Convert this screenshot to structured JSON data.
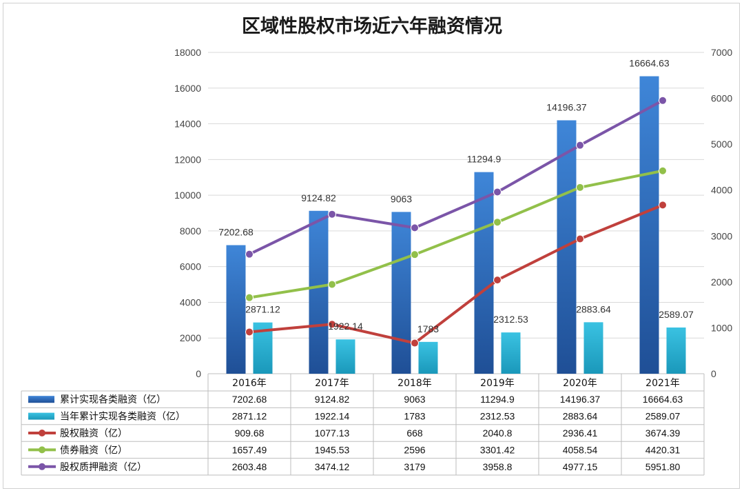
{
  "chart_data": {
    "type": "bar",
    "title": "区域性股权市场近六年融资情况",
    "categories": [
      "2016年",
      "2017年",
      "2018年",
      "2019年",
      "2020年",
      "2021年"
    ],
    "y_left": {
      "min": 0,
      "max": 18000,
      "ticks": [
        "0",
        "2000",
        "4000",
        "6000",
        "8000",
        "10000",
        "12000",
        "14000",
        "16000",
        "18000"
      ]
    },
    "y_right": {
      "min": 0,
      "max": 7000,
      "ticks": [
        "0",
        "1000",
        "2000",
        "3000",
        "4000",
        "5000",
        "6000",
        "7000"
      ]
    },
    "series": [
      {
        "name": "累计实现各类融资（亿）",
        "kind": "bar",
        "axis": "left",
        "color": "#3a78c8",
        "values": [
          7202.68,
          9124.82,
          9063,
          11294.9,
          14196.37,
          16664.63
        ],
        "labels": [
          "7202.68",
          "9124.82",
          "9063",
          "11294.9",
          "14196.37",
          "16664.63"
        ]
      },
      {
        "name": "当年累计实现各类融资（亿）",
        "kind": "bar",
        "axis": "left",
        "color": "#2fb3d4",
        "values": [
          2871.12,
          1922.14,
          1783,
          2312.53,
          2883.64,
          2589.07
        ],
        "labels": [
          "2871.12",
          "1922.14",
          "1783",
          "2312.53",
          "2883.64",
          "2589.07"
        ]
      },
      {
        "name": "股权融资（亿）",
        "kind": "line",
        "axis": "right",
        "color": "#c0403c",
        "values": [
          909.68,
          1077.13,
          668,
          2040.8,
          2936.41,
          3674.39
        ],
        "labels": [
          "909.68",
          "1077.13",
          "668",
          "2040.8",
          "2936.41",
          "3674.39"
        ]
      },
      {
        "name": "债券融资（亿）",
        "kind": "line",
        "axis": "right",
        "color": "#92c04a",
        "values": [
          1657.49,
          1945.53,
          2596,
          3301.42,
          4058.54,
          4420.31
        ],
        "labels": [
          "1657.49",
          "1945.53",
          "2596",
          "3301.42",
          "4058.54",
          "4420.31"
        ]
      },
      {
        "name": "股权质押融资（亿）",
        "kind": "line",
        "axis": "right",
        "color": "#7b55a8",
        "values": [
          2603.48,
          3474.12,
          3179,
          3958.8,
          4977.15,
          5951.8
        ],
        "labels": [
          "2603.48",
          "3474.12",
          "3179",
          "3958.8",
          "4977.15",
          "5951.80"
        ]
      }
    ],
    "grid": true,
    "legend": "data-table-below"
  }
}
